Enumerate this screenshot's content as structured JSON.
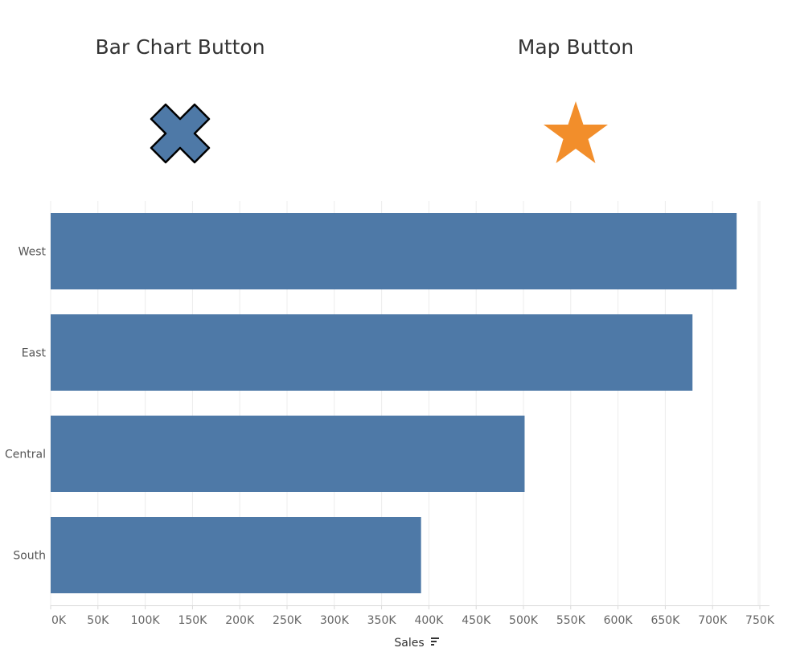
{
  "buttons": {
    "bar_chart": {
      "label": "Bar Chart Button",
      "icon": "x-mark-icon",
      "color": "#4e79a7"
    },
    "map": {
      "label": "Map Button",
      "icon": "star-icon",
      "color": "#f28e2b"
    }
  },
  "chart_data": {
    "type": "bar",
    "orientation": "horizontal",
    "categories": [
      "West",
      "East",
      "Central",
      "South"
    ],
    "values": [
      725458,
      678781,
      501240,
      391722
    ],
    "xlabel": "Sales",
    "ylabel": "",
    "xlim": [
      0,
      760000
    ],
    "x_ticks": [
      0,
      50000,
      100000,
      150000,
      200000,
      250000,
      300000,
      350000,
      400000,
      450000,
      500000,
      550000,
      600000,
      650000,
      700000,
      750000
    ],
    "x_tick_labels": [
      "0K",
      "50K",
      "100K",
      "150K",
      "200K",
      "250K",
      "300K",
      "350K",
      "400K",
      "450K",
      "500K",
      "550K",
      "600K",
      "650K",
      "700K",
      "750K"
    ],
    "sort_icon": "sort-descending-icon",
    "grid": true,
    "bar_color": "#4e79a7"
  }
}
